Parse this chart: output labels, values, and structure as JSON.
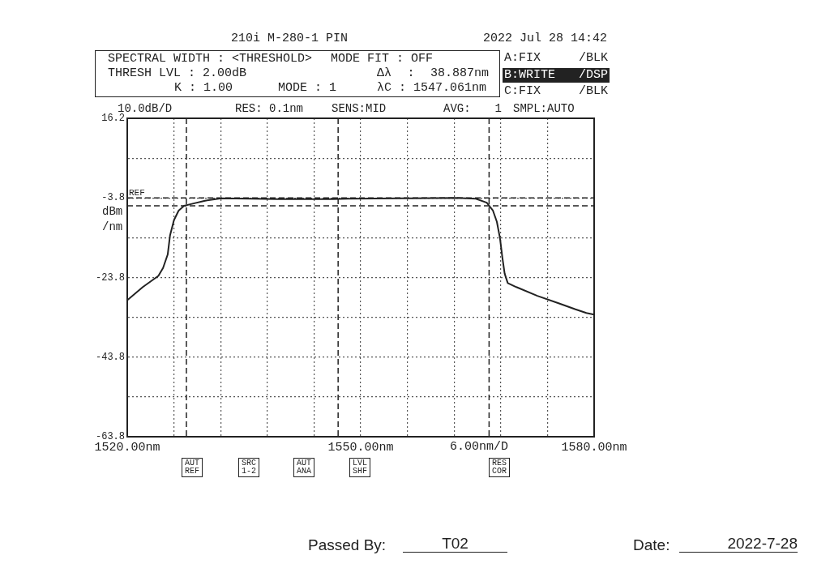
{
  "chart_data": {
    "type": "line",
    "title": "210i M-280-1 PIN",
    "ylabel": "dBm/nm",
    "xlabel": "6.00nm/D",
    "annotations": [
      "2022 Jul 28 14:42",
      "SPECTRAL WIDTH : <THRESHOLD>",
      "MODE FIT : OFF",
      "THRESH LVL : 2.00dB",
      "K : 1.00",
      "MODE : 1",
      "Δλ : 38.887nm",
      "λC : 1547.061nm",
      "A:FIX /BLK",
      "B:WRITE /DSP",
      "C:FIX /BLK",
      "10.0dB/D",
      "RES: 0.1nm",
      "SENS:MID",
      "AVG: 1",
      "SMPL:AUTO",
      "AUT REF",
      "SRC 1-2",
      "AUT ANA",
      "LVL SHF",
      "RES COR",
      "Passed By:",
      "T02",
      "Date:",
      "2022-7-28"
    ],
    "x": [
      1520.0,
      1522.0,
      1524.0,
      1524.6,
      1525.2,
      1525.5,
      1526.0,
      1526.6,
      1527.3,
      1528.3,
      1530.0,
      1532.1,
      1535.9,
      1539.4,
      1546.4,
      1548.4,
      1555.4,
      1562.3,
      1564.8,
      1566.2,
      1567.0,
      1567.5,
      1567.9,
      1568.2,
      1568.5,
      1568.9,
      1570.0,
      1572.7,
      1575.5,
      1577.6,
      1579.0,
      1580.0
    ],
    "values": [
      -29.5,
      -26.2,
      -23.4,
      -21.4,
      -18.0,
      -13.2,
      -9.4,
      -7.0,
      -5.8,
      -5.3,
      -4.5,
      -3.9,
      -4.0,
      -4.1,
      -4.1,
      -4.0,
      -3.9,
      -3.8,
      -4.0,
      -5.0,
      -7.0,
      -9.8,
      -13.9,
      -18.7,
      -22.8,
      -25.2,
      -26.2,
      -28.4,
      -30.3,
      -31.8,
      -32.7,
      -33.1
    ],
    "color": "#222222",
    "xlim": [
      1520,
      1580
    ],
    "xticks": [
      {
        "value": 1520,
        "label": "1520.00nm"
      },
      {
        "value": 1526,
        "label": null
      },
      {
        "value": 1532,
        "label": null
      },
      {
        "value": 1538,
        "label": null
      },
      {
        "value": 1544,
        "label": null
      },
      {
        "value": 1550,
        "label": "1550.00nm"
      },
      {
        "value": 1556,
        "label": null
      },
      {
        "value": 1562,
        "label": null
      },
      {
        "value": 1568,
        "label": null
      },
      {
        "value": 1574,
        "label": null
      },
      {
        "value": 1580,
        "label": "1580.00nm"
      }
    ],
    "ylim": [
      -63.8,
      16.2
    ],
    "yticks": [
      -63.8,
      {
        "value": -53.8,
        "label": null
      },
      -43.8,
      {
        "value": -33.8,
        "label": null
      },
      -23.8,
      {
        "value": -13.8,
        "label": null
      },
      -3.8,
      {
        "value": 6.2,
        "label": null
      },
      16.2
    ],
    "grid": true,
    "ref_lines": [
      {
        "axis": "y",
        "value": -3.8,
        "label": "REF",
        "line_style": "dashed"
      },
      {
        "axis": "y",
        "value": -5.8,
        "line_style": "dashed"
      },
      {
        "axis": "x",
        "value": 1527.6,
        "line_style": "dashed"
      },
      {
        "axis": "x",
        "value": 1547.1,
        "line_style": "dashed"
      },
      {
        "axis": "x",
        "value": 1566.5,
        "line_style": "dashed"
      }
    ]
  }
}
